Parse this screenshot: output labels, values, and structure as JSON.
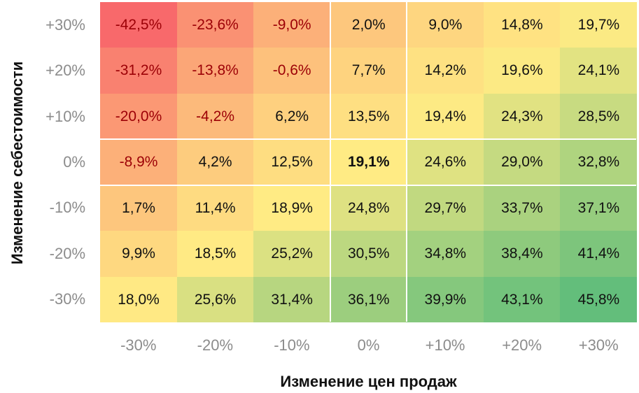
{
  "chart_data": {
    "type": "heatmap",
    "xlabel": "Изменение цен продаж",
    "ylabel": "Изменение себестоимости",
    "x_categories": [
      "-30%",
      "-20%",
      "-10%",
      "0%",
      "+10%",
      "+20%",
      "+30%"
    ],
    "y_categories": [
      "+30%",
      "+20%",
      "+10%",
      "0%",
      "-10%",
      "-20%",
      "-30%"
    ],
    "values": [
      [
        -42.5,
        -23.6,
        -9.0,
        2.0,
        9.0,
        14.8,
        19.7
      ],
      [
        -31.2,
        -13.8,
        -0.6,
        7.7,
        14.2,
        19.6,
        24.1
      ],
      [
        -20.0,
        -4.2,
        6.2,
        13.5,
        19.4,
        24.3,
        28.5
      ],
      [
        -8.9,
        4.2,
        12.5,
        19.1,
        24.6,
        29.0,
        32.8
      ],
      [
        1.7,
        11.4,
        18.9,
        24.8,
        29.7,
        33.7,
        37.1
      ],
      [
        9.9,
        18.5,
        25.2,
        30.5,
        34.8,
        38.4,
        41.4
      ],
      [
        18.0,
        25.6,
        31.4,
        36.1,
        39.9,
        43.1,
        45.8
      ]
    ],
    "labels": [
      [
        "-42,5%",
        "-23,6%",
        "-9,0%",
        "2,0%",
        "9,0%",
        "14,8%",
        "19,7%"
      ],
      [
        "-31,2%",
        "-13,8%",
        "-0,6%",
        "7,7%",
        "14,2%",
        "19,6%",
        "24,1%"
      ],
      [
        "-20,0%",
        "-4,2%",
        "6,2%",
        "13,5%",
        "19,4%",
        "24,3%",
        "28,5%"
      ],
      [
        "-8,9%",
        "4,2%",
        "12,5%",
        "19,1%",
        "24,6%",
        "29,0%",
        "32,8%"
      ],
      [
        "1,7%",
        "11,4%",
        "18,9%",
        "24,8%",
        "29,7%",
        "33,7%",
        "37,1%"
      ],
      [
        "9,9%",
        "18,5%",
        "25,2%",
        "30,5%",
        "34,8%",
        "38,4%",
        "41,4%"
      ],
      [
        "18,0%",
        "25,6%",
        "31,4%",
        "36,1%",
        "39,9%",
        "43,1%",
        "45,8%"
      ]
    ],
    "highlight": {
      "row": 3,
      "col": 3
    },
    "color_scale": {
      "min": "#F8696B",
      "mid": "#FFEB84",
      "max": "#63BE7B",
      "mid_value": 19.1
    },
    "negative_text_color": "#9C0006"
  }
}
